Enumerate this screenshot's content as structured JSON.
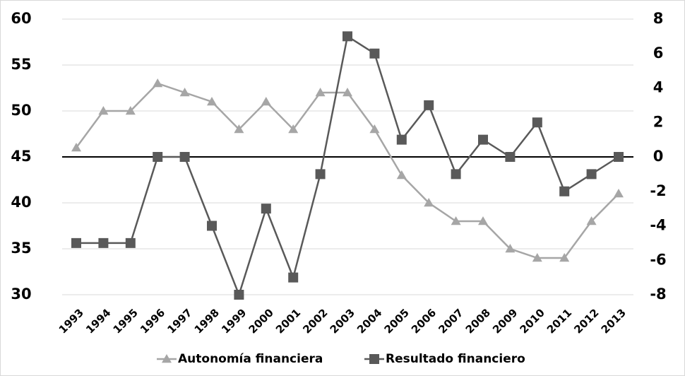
{
  "chart_data": {
    "type": "line",
    "categories": [
      "1993",
      "1994",
      "1995",
      "1996",
      "1997",
      "1998",
      "1999",
      "2000",
      "2001",
      "2002",
      "2003",
      "2004",
      "2005",
      "2006",
      "2007",
      "2008",
      "2009",
      "2010",
      "2011",
      "2012",
      "2013"
    ],
    "series": [
      {
        "name": "Autonomía financiera",
        "color": "#a6a6a6",
        "marker": "triangle",
        "values": [
          46,
          50,
          50,
          53,
          52,
          51,
          48,
          51,
          48,
          52,
          52,
          48,
          43,
          40,
          38,
          38,
          35,
          34,
          34,
          38,
          41
        ]
      },
      {
        "name": "Resultado financiero",
        "color": "#595959",
        "marker": "square",
        "axis": "y2",
        "values": [
          -5,
          -5,
          -5,
          0,
          0,
          -4,
          -8,
          -3,
          -7,
          -1,
          7,
          6,
          1,
          3,
          -1,
          1,
          0,
          2,
          -2,
          -1,
          0
        ]
      }
    ],
    "ylim": [
      30,
      60
    ],
    "yticks": [
      30,
      35,
      40,
      45,
      50,
      55,
      60
    ],
    "y2lim": [
      -8,
      8
    ],
    "y2ticks": [
      -8,
      -6,
      -4,
      -2,
      0,
      2,
      4,
      6,
      8
    ],
    "grid": true,
    "legend": "bottom"
  }
}
